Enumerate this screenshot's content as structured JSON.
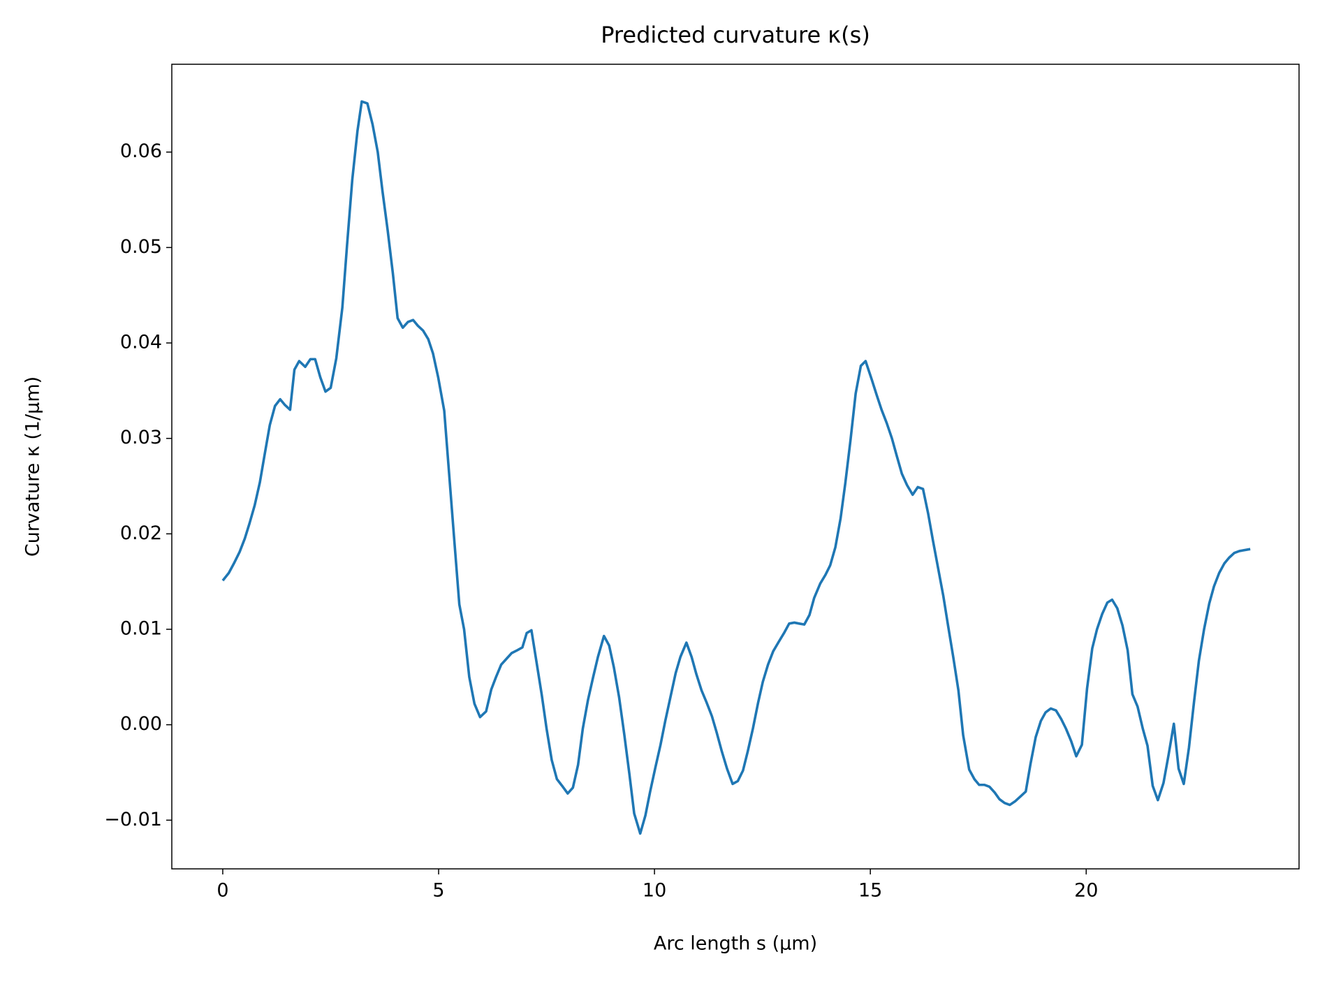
{
  "chart_data": {
    "type": "line",
    "title": "Predicted curvature κ(s)",
    "x_label": "Arc length s (µm)",
    "y_label": "Curvature κ (1/µm)",
    "xlim": [
      -1.18,
      24.93
    ],
    "ylim": [
      -0.0151,
      0.0692
    ],
    "xticks": [
      0,
      5,
      10,
      15,
      20
    ],
    "yticks": [
      {
        "value": -0.01,
        "label": "−0.01"
      },
      {
        "value": 0,
        "label": "0.00"
      },
      0.01,
      0.02,
      0.03,
      0.04,
      0.05,
      0.06
    ],
    "grid": false,
    "x": [
      0,
      0.14,
      0.27,
      0.39,
      0.51,
      0.62,
      0.74,
      0.86,
      0.97,
      1.09,
      1.21,
      1.33,
      1.44,
      1.56,
      1.66,
      1.77,
      1.91,
      2.03,
      2.14,
      2.26,
      2.38,
      2.5,
      2.63,
      2.77,
      2.88,
      3.0,
      3.12,
      3.22,
      3.35,
      3.47,
      3.59,
      3.7,
      3.82,
      3.94,
      4.05,
      4.17,
      4.29,
      4.41,
      4.52,
      4.64,
      4.76,
      4.87,
      4.99,
      5.13,
      5.24,
      5.36,
      5.48,
      5.59,
      5.71,
      5.83,
      5.96,
      6.1,
      6.22,
      6.33,
      6.45,
      6.57,
      6.69,
      6.82,
      6.94,
      7.04,
      7.15,
      7.27,
      7.39,
      7.5,
      7.62,
      7.74,
      7.86,
      7.99,
      8.11,
      8.23,
      8.34,
      8.46,
      8.58,
      8.69,
      8.83,
      8.95,
      9.06,
      9.18,
      9.3,
      9.42,
      9.53,
      9.67,
      9.79,
      9.9,
      10.02,
      10.14,
      10.25,
      10.37,
      10.49,
      10.6,
      10.74,
      10.86,
      10.97,
      11.09,
      11.21,
      11.33,
      11.44,
      11.56,
      11.68,
      11.81,
      11.93,
      12.05,
      12.16,
      12.28,
      12.4,
      12.51,
      12.63,
      12.75,
      12.88,
      13.0,
      13.12,
      13.24,
      13.35,
      13.47,
      13.59,
      13.7,
      13.84,
      13.96,
      14.07,
      14.19,
      14.31,
      14.42,
      14.54,
      14.66,
      14.78,
      14.89,
      15.03,
      15.15,
      15.26,
      15.38,
      15.5,
      15.61,
      15.73,
      15.85,
      15.98,
      16.1,
      16.22,
      16.34,
      16.45,
      16.57,
      16.69,
      16.8,
      16.92,
      17.04,
      17.15,
      17.29,
      17.41,
      17.52,
      17.64,
      17.76,
      17.88,
      17.99,
      18.11,
      18.23,
      18.36,
      18.48,
      18.6,
      18.71,
      18.83,
      18.95,
      19.06,
      19.18,
      19.3,
      19.42,
      19.53,
      19.65,
      19.77,
      19.9,
      20.02,
      20.14,
      20.25,
      20.37,
      20.49,
      20.6,
      20.72,
      20.84,
      20.96,
      21.07,
      21.19,
      21.31,
      21.42,
      21.54,
      21.66,
      21.79,
      21.91,
      22.03,
      22.14,
      22.26,
      22.38,
      22.5,
      22.61,
      22.73,
      22.85,
      22.96,
      23.08,
      23.2,
      23.31,
      23.43,
      23.55,
      23.8
    ],
    "series": [
      {
        "name": "κ(s)",
        "color": "#1f77b4",
        "values": [
          0.0151,
          0.0159,
          0.017,
          0.0181,
          0.0195,
          0.0211,
          0.023,
          0.0254,
          0.0283,
          0.0314,
          0.0334,
          0.0341,
          0.0335,
          0.033,
          0.0372,
          0.0381,
          0.0375,
          0.0383,
          0.0383,
          0.0364,
          0.0349,
          0.0353,
          0.0384,
          0.0437,
          0.0503,
          0.0571,
          0.0622,
          0.0653,
          0.0651,
          0.0629,
          0.06,
          0.0559,
          0.0518,
          0.0473,
          0.0426,
          0.0416,
          0.0422,
          0.0424,
          0.0418,
          0.0413,
          0.0404,
          0.0389,
          0.0364,
          0.0329,
          0.0265,
          0.0195,
          0.0126,
          0.01,
          0.005,
          0.0022,
          0.0008,
          0.0014,
          0.0037,
          0.005,
          0.0063,
          0.0069,
          0.0075,
          0.0078,
          0.0081,
          0.0096,
          0.0099,
          0.0065,
          0.0031,
          -0.0004,
          -0.0037,
          -0.0057,
          -0.0064,
          -0.0072,
          -0.0066,
          -0.0042,
          -0.0004,
          0.0026,
          0.005,
          0.0071,
          0.0093,
          0.0083,
          0.006,
          0.0029,
          -0.001,
          -0.0052,
          -0.0093,
          -0.0114,
          -0.0095,
          -0.007,
          -0.0045,
          -0.0021,
          0.0004,
          0.0029,
          0.0054,
          0.0071,
          0.0086,
          0.0071,
          0.0053,
          0.0036,
          0.0023,
          0.0009,
          -0.0008,
          -0.0028,
          -0.0046,
          -0.0062,
          -0.0059,
          -0.0048,
          -0.0028,
          -0.0004,
          0.0023,
          0.0045,
          0.0063,
          0.0077,
          0.0087,
          0.0096,
          0.0106,
          0.0107,
          0.0106,
          0.0105,
          0.0115,
          0.0133,
          0.0148,
          0.0157,
          0.0167,
          0.0186,
          0.0216,
          0.0253,
          0.0298,
          0.0347,
          0.0376,
          0.0381,
          0.0362,
          0.0345,
          0.033,
          0.0316,
          0.03,
          0.0282,
          0.0263,
          0.0251,
          0.0241,
          0.0249,
          0.0247,
          0.0221,
          0.0193,
          0.0164,
          0.0135,
          0.0104,
          0.0071,
          0.0036,
          -0.0011,
          -0.0047,
          -0.0057,
          -0.0063,
          -0.0063,
          -0.0065,
          -0.0071,
          -0.0078,
          -0.0082,
          -0.0084,
          -0.008,
          -0.0075,
          -0.007,
          -0.0041,
          -0.0013,
          0.0004,
          0.0013,
          0.0017,
          0.0015,
          0.0006,
          -0.0004,
          -0.0017,
          -0.0033,
          -0.0021,
          0.0038,
          0.008,
          0.01,
          0.0116,
          0.0128,
          0.0131,
          0.0122,
          0.0104,
          0.0078,
          0.0032,
          0.0019,
          -0.0004,
          -0.0022,
          -0.0064,
          -0.0079,
          -0.0061,
          -0.0031,
          0.0001,
          -0.0046,
          -0.0062,
          -0.0024,
          0.0025,
          0.0067,
          0.01,
          0.0127,
          0.0145,
          0.0159,
          0.0169,
          0.0175,
          0.018,
          0.0182,
          0.0184
        ]
      }
    ]
  }
}
